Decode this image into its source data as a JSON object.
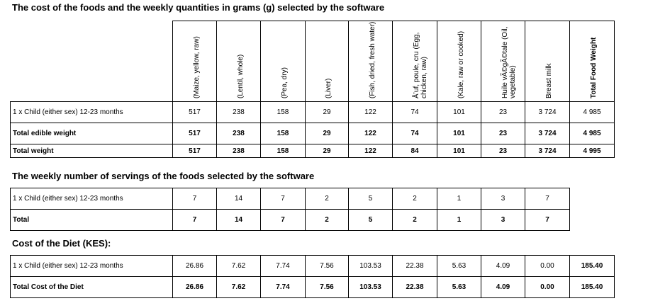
{
  "headings": {
    "quantities": "The cost of the foods and the weekly quantities in grams (g) selected by the software",
    "servings": "The weekly number of servings of the foods selected by the software",
    "cost": "Cost of the Diet (KES):"
  },
  "foods": [
    "(Maize, yellow, raw)",
    "(Lentil, whole)",
    "(Pea, dry)",
    "(Liver)",
    "(Fish, dried, fresh water)",
    "Å’uf, poule, cru (Egg, chicken, raw)",
    "(Kale, raw or cooked)",
    "Huile vÃ©gÃ©tale (Oil, vegetable)",
    "Breast milk"
  ],
  "total_food_weight_header": "Total Food Weight",
  "quantities_rows": [
    {
      "label": "1 x Child (either sex) 12-23 months",
      "values": [
        "517",
        "238",
        "158",
        "29",
        "122",
        "74",
        "101",
        "23",
        "3 724",
        "4 985"
      ]
    },
    {
      "label": "Total edible weight",
      "values": [
        "517",
        "238",
        "158",
        "29",
        "122",
        "74",
        "101",
        "23",
        "3 724",
        "4 985"
      ]
    },
    {
      "label": "Total weight",
      "values": [
        "517",
        "238",
        "158",
        "29",
        "122",
        "84",
        "101",
        "23",
        "3 724",
        "4 995"
      ]
    }
  ],
  "servings_rows": [
    {
      "label": "1 x Child (either sex) 12-23 months",
      "values": [
        "7",
        "14",
        "7",
        "2",
        "5",
        "2",
        "1",
        "3",
        "7"
      ]
    },
    {
      "label": "Total",
      "values": [
        "7",
        "14",
        "7",
        "2",
        "5",
        "2",
        "1",
        "3",
        "7"
      ]
    }
  ],
  "cost_rows": [
    {
      "label": "1 x Child (either sex) 12-23 months",
      "values": [
        "26.86",
        "7.62",
        "7.74",
        "7.56",
        "103.53",
        "22.38",
        "5.63",
        "4.09",
        "0.00",
        "185.40"
      ]
    },
    {
      "label": "Total Cost of the Diet",
      "values": [
        "26.86",
        "7.62",
        "7.74",
        "7.56",
        "103.53",
        "22.38",
        "5.63",
        "4.09",
        "0.00",
        "185.40"
      ]
    }
  ]
}
